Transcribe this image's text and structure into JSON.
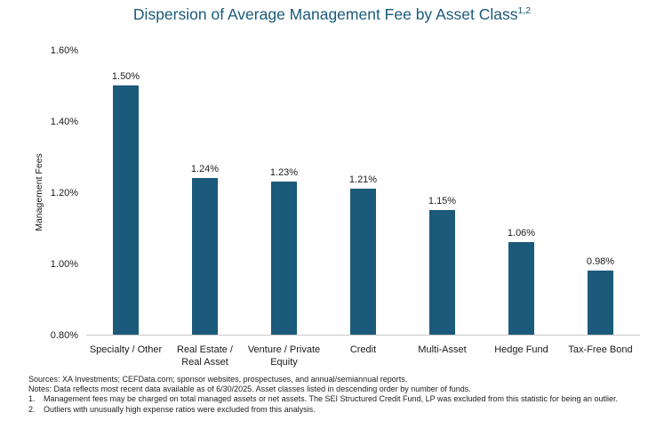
{
  "title": "Dispersion of Average Management Fee by Asset Class",
  "title_superscript": "1,2",
  "colors": {
    "bar": "#1b5a7a",
    "title": "#1b5a7a",
    "axis": "#c9c9c9"
  },
  "chart_data": {
    "type": "bar",
    "title": "Dispersion of Average Management Fee by Asset Class",
    "xlabel": "",
    "ylabel": "Management Fees",
    "ylim": [
      0.8,
      1.6
    ],
    "yticks": [
      0.8,
      1.0,
      1.2,
      1.4,
      1.6
    ],
    "ytick_labels": [
      "0.80%",
      "1.00%",
      "1.20%",
      "1.40%",
      "1.60%"
    ],
    "categories": [
      [
        "Specialty / Other"
      ],
      [
        "Real Estate /",
        "Real Asset"
      ],
      [
        "Venture / Private",
        "Equity"
      ],
      [
        "Credit"
      ],
      [
        "Multi-Asset"
      ],
      [
        "Hedge Fund"
      ],
      [
        "Tax-Free Bond"
      ]
    ],
    "values": [
      1.5,
      1.24,
      1.23,
      1.21,
      1.15,
      1.06,
      0.98
    ],
    "value_labels": [
      "1.50%",
      "1.24%",
      "1.23%",
      "1.21%",
      "1.15%",
      "1.06%",
      "0.98%"
    ],
    "grid": false,
    "legend": "none"
  },
  "notes": {
    "sources": "Sources: XA Investments; CEFData.com; sponsor websites, prospectuses, and annual/semiannual reports.",
    "data_note": "Notes: Data reflects most recent data available as of 6/30/2025. Asset classes listed in descending order by number of funds.",
    "footnotes": [
      {
        "num": "1.",
        "text": "Management fees may be charged on total managed assets or net assets. The SEI Structured Credit Fund, LP was excluded from this statistic for being an outlier."
      },
      {
        "num": "2.",
        "text": "Outliers with unusually high expense ratios were excluded from this analysis."
      }
    ]
  }
}
